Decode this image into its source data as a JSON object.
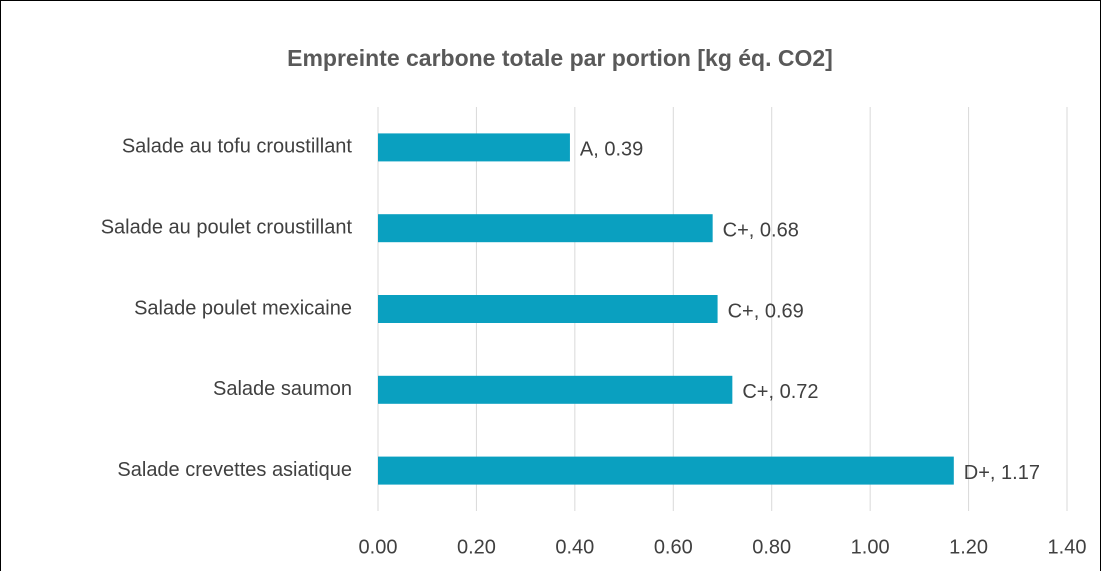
{
  "chart_data": {
    "type": "bar",
    "orientation": "horizontal",
    "title": "Empreinte carbone totale par portion [kg éq. CO2]",
    "categories": [
      "Salade au tofu croustillant",
      "Salade au poulet croustillant",
      "Salade poulet mexicaine",
      "Salade saumon",
      "Salade crevettes asiatique"
    ],
    "values": [
      0.39,
      0.68,
      0.69,
      0.72,
      1.17
    ],
    "value_labels": [
      "A, 0.39",
      "C+, 0.68",
      "C+, 0.69",
      "C+, 0.72",
      "D+, 1.17"
    ],
    "color": "#0aa0c0",
    "xlim": [
      0,
      1.4
    ],
    "xticks": [
      {
        "value": 0,
        "label": "0.00"
      },
      {
        "value": 0.2,
        "label": "0.20"
      },
      {
        "value": 0.4,
        "label": "0.40"
      },
      {
        "value": 0.6,
        "label": "0.60"
      },
      {
        "value": 0.8,
        "label": "0.80"
      },
      {
        "value": 1.0,
        "label": "1.00"
      },
      {
        "value": 1.2,
        "label": "1.20"
      },
      {
        "value": 1.4,
        "label": "1.40"
      }
    ],
    "grid": true
  }
}
